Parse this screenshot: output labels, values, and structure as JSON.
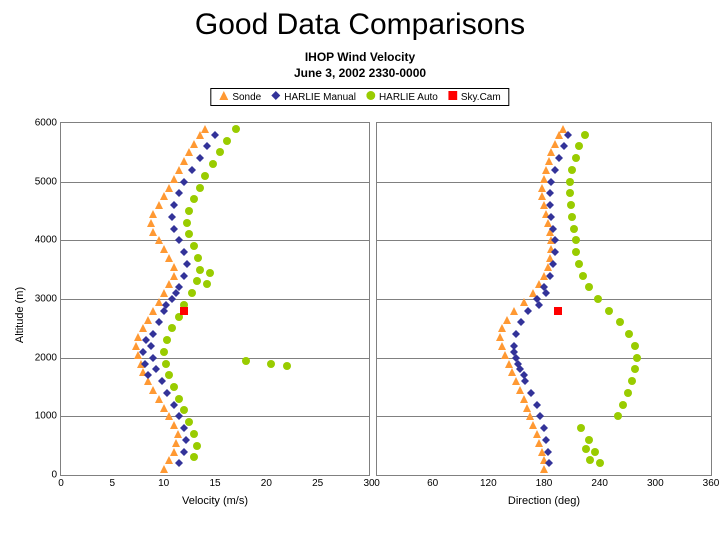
{
  "title": "Good Data Comparisons",
  "subtitle1": "IHOP Wind Velocity",
  "subtitle2": "June 3, 2002    2330-0000",
  "legend": {
    "border_color": "#000000",
    "items": [
      {
        "label": "Sonde",
        "shape": "triangle",
        "color": "#ff9933"
      },
      {
        "label": "HARLIE Manual",
        "shape": "diamond",
        "color": "#333399"
      },
      {
        "label": "HARLIE Auto",
        "shape": "circle",
        "color": "#99cc00"
      },
      {
        "label": "Sky.Cam",
        "shape": "square",
        "color": "#ff0000"
      }
    ]
  },
  "layout": {
    "marker_size": 8,
    "font_tick": 10,
    "font_axis": 11,
    "grid_color": "#808080",
    "background_color": "#ffffff"
  },
  "yaxis": {
    "label": "Altitude (m)",
    "lim": [
      0,
      6000
    ],
    "ticks": [
      0,
      1000,
      2000,
      3000,
      4000,
      5000,
      6000
    ]
  },
  "left_chart": {
    "x_label": "Velocity (m/s)",
    "xlim": [
      0,
      30
    ],
    "xticks": [
      0,
      5,
      10,
      15,
      20,
      25,
      30
    ],
    "series": {
      "sonde": {
        "shape": "triangle",
        "color": "#ff9933",
        "points": [
          [
            10,
            100
          ],
          [
            10.5,
            250
          ],
          [
            11,
            400
          ],
          [
            11.2,
            550
          ],
          [
            11.4,
            700
          ],
          [
            11,
            850
          ],
          [
            10.5,
            1000
          ],
          [
            10,
            1150
          ],
          [
            9.5,
            1300
          ],
          [
            9,
            1450
          ],
          [
            8.5,
            1600
          ],
          [
            8,
            1750
          ],
          [
            7.8,
            1900
          ],
          [
            7.5,
            2050
          ],
          [
            7.3,
            2200
          ],
          [
            7.5,
            2350
          ],
          [
            8,
            2500
          ],
          [
            8.5,
            2650
          ],
          [
            9,
            2800
          ],
          [
            9.5,
            2950
          ],
          [
            10,
            3100
          ],
          [
            10.5,
            3250
          ],
          [
            11,
            3400
          ],
          [
            11,
            3550
          ],
          [
            10.5,
            3700
          ],
          [
            10,
            3850
          ],
          [
            9.5,
            4000
          ],
          [
            9,
            4150
          ],
          [
            8.8,
            4300
          ],
          [
            9,
            4450
          ],
          [
            9.5,
            4600
          ],
          [
            10,
            4750
          ],
          [
            10.5,
            4900
          ],
          [
            11,
            5050
          ],
          [
            11.5,
            5200
          ],
          [
            12,
            5350
          ],
          [
            12.5,
            5500
          ],
          [
            13,
            5650
          ],
          [
            13.5,
            5800
          ],
          [
            14,
            5900
          ]
        ]
      },
      "harlie_manual": {
        "shape": "diamond",
        "color": "#333399",
        "points": [
          [
            11.5,
            200
          ],
          [
            12,
            400
          ],
          [
            12.2,
            600
          ],
          [
            12,
            800
          ],
          [
            11.5,
            1000
          ],
          [
            11,
            1200
          ],
          [
            10.3,
            1400
          ],
          [
            9.8,
            1600
          ],
          [
            9.3,
            1800
          ],
          [
            9,
            2000
          ],
          [
            8.8,
            2200
          ],
          [
            9,
            2400
          ],
          [
            9.5,
            2600
          ],
          [
            10,
            2800
          ],
          [
            10.8,
            3000
          ],
          [
            11.5,
            3200
          ],
          [
            12,
            3400
          ],
          [
            12.3,
            3600
          ],
          [
            12,
            3800
          ],
          [
            11.5,
            4000
          ],
          [
            11,
            4200
          ],
          [
            10.8,
            4400
          ],
          [
            11,
            4600
          ],
          [
            11.5,
            4800
          ],
          [
            12,
            5000
          ],
          [
            12.8,
            5200
          ],
          [
            13.5,
            5400
          ],
          [
            14.2,
            5600
          ],
          [
            15,
            5800
          ],
          [
            8.5,
            1700
          ],
          [
            8.2,
            1900
          ],
          [
            8,
            2100
          ],
          [
            8.3,
            2300
          ],
          [
            10.2,
            2900
          ],
          [
            11.2,
            3100
          ]
        ]
      },
      "harlie_auto": {
        "shape": "circle",
        "color": "#99cc00",
        "points": [
          [
            13,
            300
          ],
          [
            13.2,
            500
          ],
          [
            13,
            700
          ],
          [
            12.5,
            900
          ],
          [
            12,
            1100
          ],
          [
            11.5,
            1300
          ],
          [
            11,
            1500
          ],
          [
            10.5,
            1700
          ],
          [
            10.2,
            1900
          ],
          [
            10,
            2100
          ],
          [
            10.3,
            2300
          ],
          [
            10.8,
            2500
          ],
          [
            11.5,
            2700
          ],
          [
            12,
            2900
          ],
          [
            12.8,
            3100
          ],
          [
            13.2,
            3300
          ],
          [
            13.5,
            3500
          ],
          [
            13.3,
            3700
          ],
          [
            13,
            3900
          ],
          [
            12.5,
            4100
          ],
          [
            12.3,
            4300
          ],
          [
            12.5,
            4500
          ],
          [
            13,
            4700
          ],
          [
            13.5,
            4900
          ],
          [
            14,
            5100
          ],
          [
            14.8,
            5300
          ],
          [
            15.5,
            5500
          ],
          [
            16.2,
            5700
          ],
          [
            17,
            5900
          ],
          [
            18,
            1950
          ],
          [
            20.5,
            1900
          ],
          [
            22,
            1850
          ],
          [
            14.5,
            3450
          ],
          [
            14.2,
            3250
          ]
        ]
      },
      "skycam": {
        "shape": "square",
        "color": "#ff0000",
        "points": [
          [
            12,
            2800
          ]
        ]
      }
    }
  },
  "right_chart": {
    "x_label": "Direction (deg)",
    "xlim": [
      0,
      360
    ],
    "xticks": [
      0,
      60,
      120,
      180,
      240,
      300,
      360
    ],
    "series": {
      "sonde": {
        "shape": "triangle",
        "color": "#ff9933",
        "points": [
          [
            180,
            100
          ],
          [
            180,
            250
          ],
          [
            178,
            400
          ],
          [
            175,
            550
          ],
          [
            172,
            700
          ],
          [
            168,
            850
          ],
          [
            165,
            1000
          ],
          [
            162,
            1150
          ],
          [
            158,
            1300
          ],
          [
            154,
            1450
          ],
          [
            150,
            1600
          ],
          [
            146,
            1750
          ],
          [
            142,
            1900
          ],
          [
            138,
            2050
          ],
          [
            135,
            2200
          ],
          [
            133,
            2350
          ],
          [
            135,
            2500
          ],
          [
            140,
            2650
          ],
          [
            148,
            2800
          ],
          [
            158,
            2950
          ],
          [
            168,
            3100
          ],
          [
            175,
            3250
          ],
          [
            180,
            3400
          ],
          [
            184,
            3550
          ],
          [
            186,
            3700
          ],
          [
            188,
            3850
          ],
          [
            188,
            4000
          ],
          [
            186,
            4150
          ],
          [
            184,
            4300
          ],
          [
            182,
            4450
          ],
          [
            180,
            4600
          ],
          [
            178,
            4750
          ],
          [
            178,
            4900
          ],
          [
            180,
            5050
          ],
          [
            182,
            5200
          ],
          [
            185,
            5350
          ],
          [
            188,
            5500
          ],
          [
            192,
            5650
          ],
          [
            196,
            5800
          ],
          [
            200,
            5900
          ]
        ]
      },
      "harlie_manual": {
        "shape": "diamond",
        "color": "#333399",
        "points": [
          [
            185,
            200
          ],
          [
            184,
            400
          ],
          [
            182,
            600
          ],
          [
            180,
            800
          ],
          [
            176,
            1000
          ],
          [
            172,
            1200
          ],
          [
            166,
            1400
          ],
          [
            160,
            1600
          ],
          [
            154,
            1800
          ],
          [
            150,
            2000
          ],
          [
            148,
            2200
          ],
          [
            150,
            2400
          ],
          [
            155,
            2600
          ],
          [
            163,
            2800
          ],
          [
            172,
            3000
          ],
          [
            180,
            3200
          ],
          [
            186,
            3400
          ],
          [
            190,
            3600
          ],
          [
            192,
            3800
          ],
          [
            192,
            4000
          ],
          [
            190,
            4200
          ],
          [
            188,
            4400
          ],
          [
            186,
            4600
          ],
          [
            186,
            4800
          ],
          [
            188,
            5000
          ],
          [
            192,
            5200
          ],
          [
            196,
            5400
          ],
          [
            202,
            5600
          ],
          [
            206,
            5800
          ],
          [
            158,
            1700
          ],
          [
            152,
            1900
          ],
          [
            148,
            2100
          ],
          [
            175,
            2900
          ],
          [
            182,
            3100
          ]
        ]
      },
      "harlie_auto": {
        "shape": "circle",
        "color": "#99cc00",
        "points": [
          [
            240,
            200
          ],
          [
            235,
            400
          ],
          [
            228,
            600
          ],
          [
            220,
            800
          ],
          [
            260,
            1000
          ],
          [
            265,
            1200
          ],
          [
            270,
            1400
          ],
          [
            275,
            1600
          ],
          [
            278,
            1800
          ],
          [
            280,
            2000
          ],
          [
            278,
            2200
          ],
          [
            272,
            2400
          ],
          [
            262,
            2600
          ],
          [
            250,
            2800
          ],
          [
            238,
            3000
          ],
          [
            228,
            3200
          ],
          [
            222,
            3400
          ],
          [
            218,
            3600
          ],
          [
            215,
            3800
          ],
          [
            214,
            4000
          ],
          [
            212,
            4200
          ],
          [
            210,
            4400
          ],
          [
            209,
            4600
          ],
          [
            208,
            4800
          ],
          [
            208,
            5000
          ],
          [
            210,
            5200
          ],
          [
            214,
            5400
          ],
          [
            218,
            5600
          ],
          [
            224,
            5800
          ],
          [
            230,
            250
          ],
          [
            225,
            450
          ]
        ]
      },
      "skycam": {
        "shape": "square",
        "color": "#ff0000",
        "points": [
          [
            195,
            2800
          ]
        ]
      }
    }
  }
}
